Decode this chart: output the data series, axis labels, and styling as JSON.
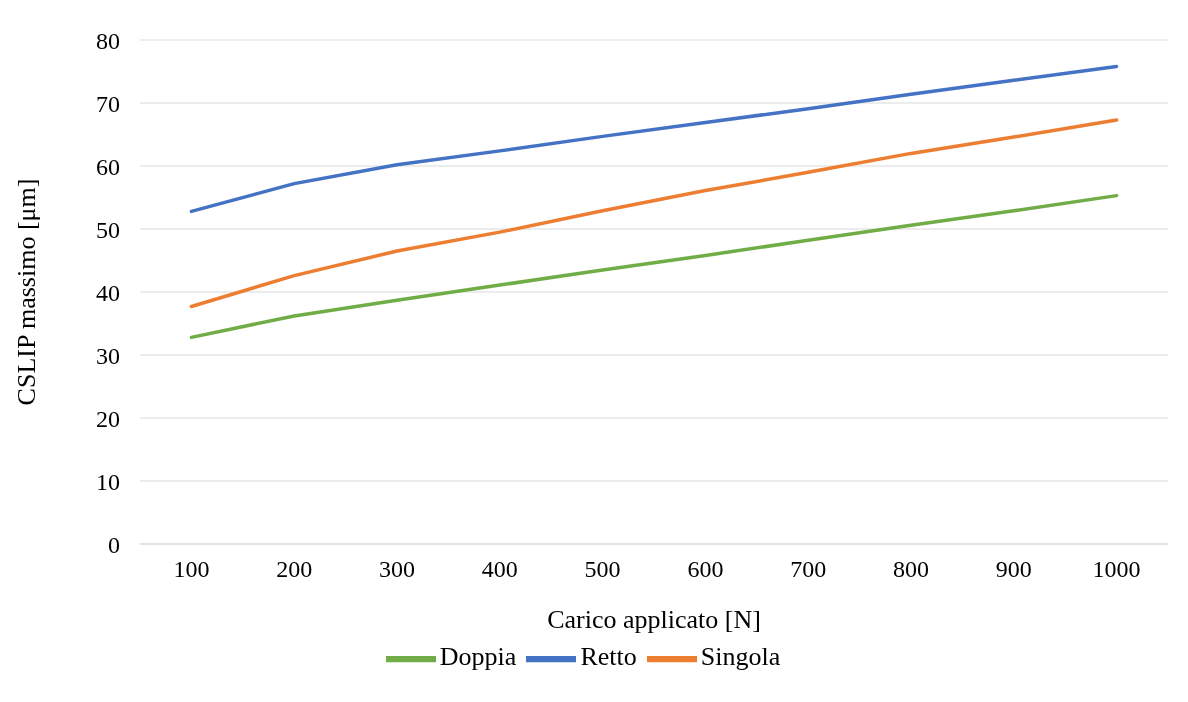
{
  "chart_data": {
    "type": "line",
    "xlabel": "Carico applicato [N]",
    "ylabel": "CSLIP massimo [μm]",
    "categories": [
      "100",
      "200",
      "300",
      "400",
      "500",
      "600",
      "700",
      "800",
      "900",
      "1000"
    ],
    "series": [
      {
        "name": "Retto",
        "color": "#4472c4",
        "values": [
          52.8,
          57.2,
          60.2,
          62.4,
          64.7,
          66.9,
          69.1,
          71.4,
          73.6,
          75.8
        ]
      },
      {
        "name": "Singola",
        "color": "#ed7d31",
        "values": [
          37.7,
          42.6,
          46.5,
          49.5,
          52.9,
          56.1,
          59.0,
          62.0,
          64.6,
          67.3
        ]
      },
      {
        "name": "Doppia",
        "color": "#70ad47",
        "values": [
          32.8,
          36.2,
          38.7,
          41.1,
          43.5,
          45.8,
          48.2,
          50.6,
          52.9,
          55.3
        ]
      }
    ],
    "ylim": [
      0,
      80
    ],
    "yticks": [
      0,
      10,
      20,
      30,
      40,
      50,
      60,
      70,
      80
    ],
    "grid": "y",
    "legend": "bottom",
    "marker": "none",
    "line_style": "solid"
  }
}
